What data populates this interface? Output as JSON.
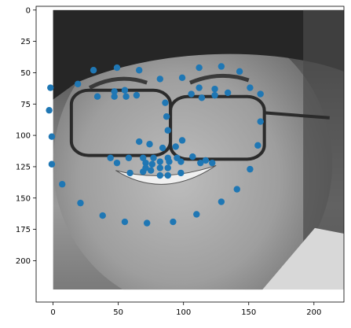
{
  "chart_data": {
    "type": "scatter",
    "title": "",
    "xlabel": "",
    "ylabel": "",
    "xlim": [
      -13,
      223
    ],
    "ylim": [
      233,
      -3
    ],
    "y_inverted": true,
    "grid": false,
    "background_image": {
      "description_name": "face-photo-grayscale",
      "extent_x": [
        0,
        223
      ],
      "extent_y": [
        223,
        0
      ]
    },
    "x_ticks": [
      {
        "value": 0,
        "label": "0"
      },
      {
        "value": 50,
        "label": "50"
      },
      {
        "value": 100,
        "label": "100"
      },
      {
        "value": 150,
        "label": "150"
      },
      {
        "value": 200,
        "label": "200"
      }
    ],
    "y_ticks": [
      {
        "value": 0,
        "label": "0"
      },
      {
        "value": 25,
        "label": "25"
      },
      {
        "value": 50,
        "label": "50"
      },
      {
        "value": 75,
        "label": "75"
      },
      {
        "value": 100,
        "label": "100"
      },
      {
        "value": 125,
        "label": "125"
      },
      {
        "value": 150,
        "label": "150"
      },
      {
        "value": 175,
        "label": "175"
      },
      {
        "value": 200,
        "label": "200"
      }
    ],
    "marker_color": "#1f77b4",
    "points": [
      {
        "x": -2,
        "y": 62
      },
      {
        "x": -3,
        "y": 80
      },
      {
        "x": -1,
        "y": 101
      },
      {
        "x": -1,
        "y": 123
      },
      {
        "x": 7,
        "y": 139
      },
      {
        "x": 21,
        "y": 154
      },
      {
        "x": 38,
        "y": 164
      },
      {
        "x": 55,
        "y": 169
      },
      {
        "x": 72,
        "y": 170
      },
      {
        "x": 92,
        "y": 169
      },
      {
        "x": 110,
        "y": 163
      },
      {
        "x": 129,
        "y": 153
      },
      {
        "x": 141,
        "y": 143
      },
      {
        "x": 151,
        "y": 127
      },
      {
        "x": 157,
        "y": 108
      },
      {
        "x": 159,
        "y": 89
      },
      {
        "x": 159,
        "y": 67
      },
      {
        "x": 19,
        "y": 59
      },
      {
        "x": 31,
        "y": 48
      },
      {
        "x": 49,
        "y": 46
      },
      {
        "x": 66,
        "y": 48
      },
      {
        "x": 82,
        "y": 55
      },
      {
        "x": 99,
        "y": 54
      },
      {
        "x": 112,
        "y": 46
      },
      {
        "x": 129,
        "y": 45
      },
      {
        "x": 143,
        "y": 49
      },
      {
        "x": 151,
        "y": 62
      },
      {
        "x": 34,
        "y": 69
      },
      {
        "x": 47,
        "y": 65
      },
      {
        "x": 55,
        "y": 64
      },
      {
        "x": 64,
        "y": 68
      },
      {
        "x": 47,
        "y": 69
      },
      {
        "x": 56,
        "y": 69
      },
      {
        "x": 112,
        "y": 62
      },
      {
        "x": 124,
        "y": 63
      },
      {
        "x": 134,
        "y": 66
      },
      {
        "x": 106,
        "y": 67
      },
      {
        "x": 114,
        "y": 70
      },
      {
        "x": 124,
        "y": 68
      },
      {
        "x": 86,
        "y": 74
      },
      {
        "x": 87,
        "y": 85
      },
      {
        "x": 88,
        "y": 96
      },
      {
        "x": 66,
        "y": 105
      },
      {
        "x": 74,
        "y": 107
      },
      {
        "x": 84,
        "y": 110
      },
      {
        "x": 94,
        "y": 109
      },
      {
        "x": 99,
        "y": 104
      },
      {
        "x": 44,
        "y": 118
      },
      {
        "x": 49,
        "y": 122
      },
      {
        "x": 58,
        "y": 118
      },
      {
        "x": 69,
        "y": 118
      },
      {
        "x": 77,
        "y": 118
      },
      {
        "x": 88,
        "y": 118
      },
      {
        "x": 95,
        "y": 118
      },
      {
        "x": 107,
        "y": 117
      },
      {
        "x": 117,
        "y": 120
      },
      {
        "x": 122,
        "y": 122
      },
      {
        "x": 59,
        "y": 130
      },
      {
        "x": 69,
        "y": 129
      },
      {
        "x": 75,
        "y": 128
      },
      {
        "x": 82,
        "y": 132
      },
      {
        "x": 88,
        "y": 132
      },
      {
        "x": 98,
        "y": 130
      },
      {
        "x": 71,
        "y": 122
      },
      {
        "x": 76,
        "y": 123
      },
      {
        "x": 82,
        "y": 121
      },
      {
        "x": 89,
        "y": 121
      },
      {
        "x": 98,
        "y": 121
      },
      {
        "x": 71,
        "y": 126
      },
      {
        "x": 82,
        "y": 126
      },
      {
        "x": 88,
        "y": 126
      },
      {
        "x": 113,
        "y": 122
      }
    ]
  }
}
